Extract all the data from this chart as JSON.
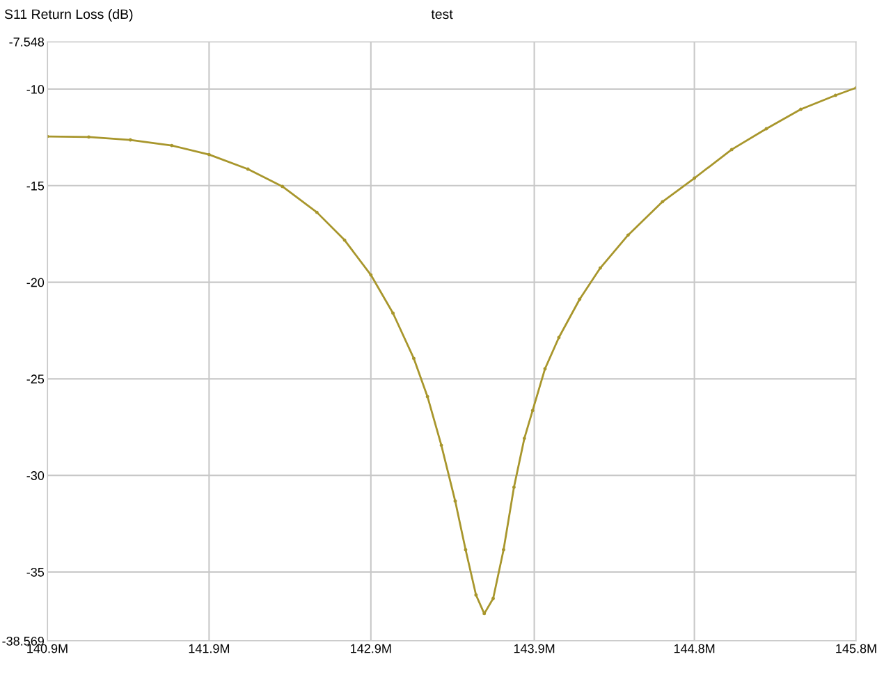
{
  "chart_data": {
    "type": "line",
    "title": "test",
    "ylabel": "S11 Return Loss (dB)",
    "x": [
      140.9,
      141.151,
      141.403,
      141.654,
      141.88,
      142.115,
      142.324,
      142.533,
      142.701,
      142.86,
      142.994,
      143.12,
      143.203,
      143.287,
      143.371,
      143.434,
      143.497,
      143.547,
      143.601,
      143.664,
      143.727,
      143.79,
      143.84,
      143.915,
      143.999,
      144.125,
      144.25,
      144.418,
      144.627,
      144.82,
      145.046,
      145.256,
      145.465,
      145.675,
      145.8
    ],
    "series": [
      {
        "color": "#a8962c",
        "values": [
          -12.45,
          -12.48,
          -12.63,
          -12.92,
          -13.39,
          -14.14,
          -15.04,
          -16.38,
          -17.82,
          -19.62,
          -21.6,
          -23.94,
          -25.92,
          -28.44,
          -31.33,
          -33.85,
          -36.19,
          -37.16,
          -36.37,
          -33.85,
          -30.61,
          -28.08,
          -26.64,
          -24.48,
          -22.86,
          -20.88,
          -19.26,
          -17.56,
          -15.83,
          -14.61,
          -13.13,
          -12.05,
          -11.04,
          -10.32,
          -9.93
        ]
      }
    ],
    "xlim": [
      140.9,
      145.8
    ],
    "xticks": [
      {
        "value": 140.9,
        "label": "140.9M"
      },
      {
        "value": 141.88,
        "label": "141.9M"
      },
      {
        "value": 142.86,
        "label": "142.9M"
      },
      {
        "value": 143.85,
        "label": "143.9M"
      },
      {
        "value": 144.82,
        "label": "144.8M"
      },
      {
        "value": 145.8,
        "label": "145.8M"
      }
    ],
    "ylim": [
      -38.569,
      -7.548
    ],
    "yticks": [
      -38.569,
      -35,
      -30,
      -25,
      -20,
      -15,
      -10,
      -7.548
    ],
    "grid": true,
    "marker": "circle",
    "line_style": "solid"
  }
}
